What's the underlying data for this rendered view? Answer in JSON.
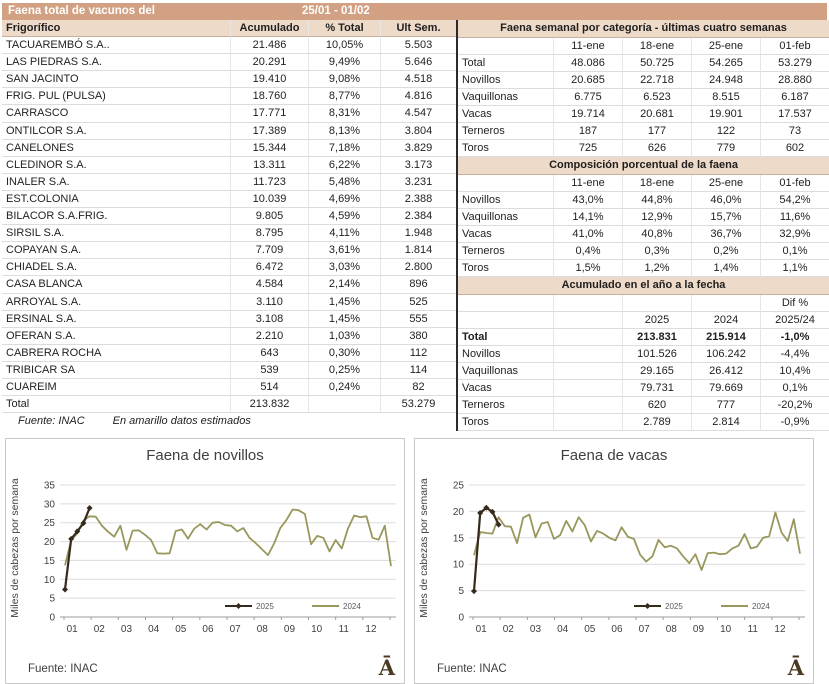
{
  "header": {
    "title": "Faena total de vacunos del",
    "dates": "25/01 - 01/02"
  },
  "colors": {
    "bar_dark": "#d2a183",
    "bar_light": "#eedac8",
    "line_2025": "#352a1b",
    "line_2024": "#99975c",
    "logo_brown": "#4a3a22"
  },
  "left_table": {
    "columns": [
      "Frigorífico",
      "Acumulado",
      "% Total",
      "Ult Sem."
    ],
    "rows": [
      [
        "TACUAREMBÓ S.A..",
        "21.486",
        "10,05%",
        "5.503"
      ],
      [
        "LAS PIEDRAS S.A.",
        "20.291",
        "9,49%",
        "5.646"
      ],
      [
        "SAN JACINTO",
        "19.410",
        "9,08%",
        "4.518"
      ],
      [
        "FRIG. PUL (PULSA)",
        "18.760",
        "8,77%",
        "4.816"
      ],
      [
        "CARRASCO",
        "17.771",
        "8,31%",
        "4.547"
      ],
      [
        "ONTILCOR S.A.",
        "17.389",
        "8,13%",
        "3.804"
      ],
      [
        "CANELONES",
        "15.344",
        "7,18%",
        "3.829"
      ],
      [
        "CLEDINOR S.A.",
        "13.311",
        "6,22%",
        "3.173"
      ],
      [
        "INALER S.A.",
        "11.723",
        "5,48%",
        "3.231"
      ],
      [
        "EST.COLONIA",
        "10.039",
        "4,69%",
        "2.388"
      ],
      [
        "BILACOR S.A.FRIG.",
        "9.805",
        "4,59%",
        "2.384"
      ],
      [
        "SIRSIL S.A.",
        "8.795",
        "4,11%",
        "1.948"
      ],
      [
        "COPAYAN S.A.",
        "7.709",
        "3,61%",
        "1.814"
      ],
      [
        "CHIADEL S.A.",
        "6.472",
        "3,03%",
        "2.800"
      ],
      [
        "CASA BLANCA",
        "4.584",
        "2,14%",
        "896"
      ],
      [
        "ARROYAL S.A.",
        "3.110",
        "1,45%",
        "525"
      ],
      [
        "ERSINAL S.A.",
        "3.108",
        "1,45%",
        "555"
      ],
      [
        "OFERAN S.A.",
        "2.210",
        "1,03%",
        "380"
      ],
      [
        "CABRERA ROCHA",
        "643",
        "0,30%",
        "112"
      ],
      [
        "TRIBICAR SA",
        "539",
        "0,25%",
        "114"
      ],
      [
        "CUAREIM",
        "514",
        "0,24%",
        "82"
      ]
    ],
    "total_row": [
      "Total",
      "213.832",
      "",
      "53.279"
    ],
    "footer_source": "Fuente: INAC",
    "footer_note": "En amarillo datos estimados"
  },
  "right_table": {
    "section1": {
      "title": "Faena semanal por categoría - últimas cuatro semanas",
      "columns": [
        "",
        "11-ene",
        "18-ene",
        "25-ene",
        "01-feb"
      ],
      "rows": [
        [
          "Total",
          "48.086",
          "50.725",
          "54.265",
          "53.279"
        ],
        [
          "Novillos",
          "20.685",
          "22.718",
          "24.948",
          "28.880"
        ],
        [
          "Vaquillonas",
          "6.775",
          "6.523",
          "8.515",
          "6.187"
        ],
        [
          "Vacas",
          "19.714",
          "20.681",
          "19.901",
          "17.537"
        ],
        [
          "Terneros",
          "187",
          "177",
          "122",
          "73"
        ],
        [
          "Toros",
          "725",
          "626",
          "779",
          "602"
        ]
      ]
    },
    "section2": {
      "title": "Composición porcentual de la faena",
      "columns": [
        "",
        "11-ene",
        "18-ene",
        "25-ene",
        "01-feb"
      ],
      "rows": [
        [
          "Novillos",
          "43,0%",
          "44,8%",
          "46,0%",
          "54,2%"
        ],
        [
          "Vaquillonas",
          "14,1%",
          "12,9%",
          "15,7%",
          "11,6%"
        ],
        [
          "Vacas",
          "41,0%",
          "40,8%",
          "36,7%",
          "32,9%"
        ],
        [
          "Terneros",
          "0,4%",
          "0,3%",
          "0,2%",
          "0,1%"
        ],
        [
          "Toros",
          "1,5%",
          "1,2%",
          "1,4%",
          "1,1%"
        ]
      ]
    },
    "section3": {
      "title": "Acumulado en el año a la fecha",
      "pre_rows": [
        [
          "",
          "",
          "",
          "",
          "Dif %"
        ],
        [
          "",
          "",
          "2025",
          "2024",
          "2025/24"
        ]
      ],
      "rows": [
        [
          "Total",
          "",
          "213.831",
          "215.914",
          "-1,0%"
        ],
        [
          "Novillos",
          "",
          "101.526",
          "106.242",
          "-4,4%"
        ],
        [
          "Vaquillonas",
          "",
          "29.165",
          "26.412",
          "10,4%"
        ],
        [
          "Vacas",
          "",
          "79.731",
          "79.669",
          "0,1%"
        ],
        [
          "Terneros",
          "",
          "620",
          "777",
          "-20,2%"
        ],
        [
          "Toros",
          "",
          "2.789",
          "2.814",
          "-0,9%"
        ]
      ]
    }
  },
  "chart_data": [
    {
      "type": "line",
      "title": "Faena de novillos",
      "ylabel": "Miles de cabezas por semana",
      "source": "Fuente: INAC",
      "logo_text": "Ā",
      "x_labels": [
        "01",
        "02",
        "03",
        "04",
        "05",
        "06",
        "07",
        "08",
        "09",
        "10",
        "11",
        "12"
      ],
      "ylim": [
        0,
        35
      ],
      "ytick_step": 5,
      "legend_position": "bottom-right-inside",
      "grid": true,
      "series": [
        {
          "name": "2025",
          "color": "#352a1b",
          "marker": "diamond",
          "values": [
            7.3,
            20.7,
            22.7,
            24.9,
            28.9
          ]
        },
        {
          "name": "2024",
          "color": "#99975c",
          "values": [
            13.7,
            20.4,
            22.2,
            25.6,
            26.7,
            26.6,
            24.2,
            22.6,
            21.3,
            24.2,
            17.8,
            22.9,
            23.0,
            21.8,
            20.4,
            16.9,
            16.8,
            16.9,
            22.8,
            23.2,
            20.8,
            23.4,
            24.6,
            23.2,
            25.0,
            25.2,
            24.4,
            24.2,
            22.7,
            23.6,
            21.0,
            19.6,
            18.0,
            16.4,
            19.5,
            23.6,
            25.7,
            28.5,
            28.3,
            27.3,
            19.3,
            21.5,
            21.0,
            17.4,
            20.4,
            18.2,
            23.4,
            26.9,
            26.5,
            26.7,
            21.0,
            20.5,
            24.2,
            13.5
          ]
        }
      ]
    },
    {
      "type": "line",
      "title": "Faena de vacas",
      "ylabel": "Miles de cabezas por semana",
      "source": "Fuente: INAC",
      "logo_text": "Ā",
      "x_labels": [
        "01",
        "02",
        "03",
        "04",
        "05",
        "06",
        "07",
        "08",
        "09",
        "10",
        "11",
        "12"
      ],
      "ylim": [
        0,
        25
      ],
      "ytick_step": 5,
      "legend_position": "bottom-right-inside",
      "grid": true,
      "series": [
        {
          "name": "2025",
          "color": "#352a1b",
          "marker": "diamond",
          "values": [
            4.9,
            19.7,
            20.7,
            19.9,
            17.5
          ]
        },
        {
          "name": "2024",
          "color": "#99975c",
          "values": [
            11.7,
            16.1,
            15.9,
            15.8,
            18.9,
            17.2,
            17.1,
            14.0,
            18.8,
            19.4,
            15.1,
            17.7,
            18.0,
            14.8,
            15.5,
            18.2,
            16.2,
            18.9,
            17.4,
            14.3,
            16.3,
            15.8,
            15.0,
            14.5,
            17.0,
            15.2,
            14.8,
            11.8,
            10.5,
            11.5,
            14.6,
            13.2,
            13.5,
            13.0,
            11.5,
            10.2,
            11.9,
            8.9,
            12.1,
            12.2,
            11.9,
            12.0,
            13.0,
            13.5,
            15.7,
            13.0,
            13.3,
            15.0,
            15.3,
            19.8,
            16.0,
            14.4,
            18.5,
            12.0
          ]
        }
      ]
    }
  ]
}
